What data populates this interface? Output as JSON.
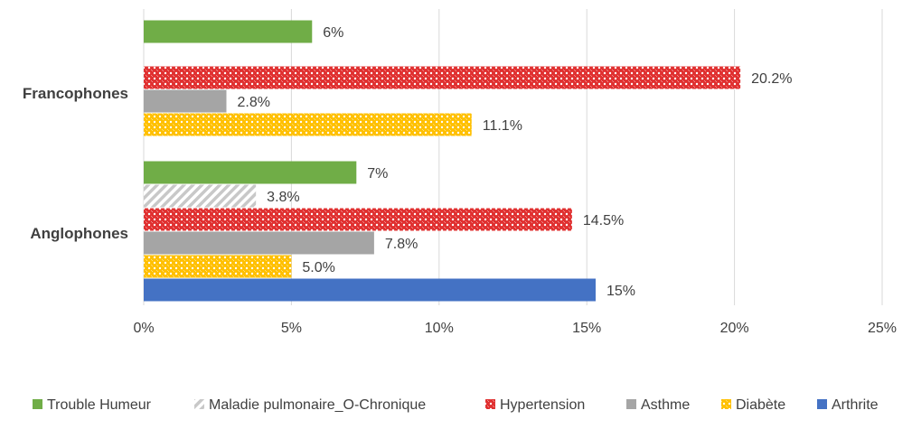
{
  "chart_data": {
    "type": "bar",
    "orientation": "horizontal",
    "x_ticks": [
      "0%",
      "5%",
      "10%",
      "15%",
      "20%",
      "25%"
    ],
    "xlim": [
      0,
      25
    ],
    "grid": true,
    "legend_position": "bottom",
    "categories": [
      "Francophones",
      "Anglophones"
    ],
    "series": [
      {
        "name": "Trouble Humeur",
        "color": "#70ad47",
        "pattern": "solid",
        "values": [
          5.7,
          7.2
        ],
        "labels": [
          "6%",
          "7%"
        ]
      },
      {
        "name": "Maladie pulmonaire_O-Chronique",
        "color": "#bfbfbf",
        "pattern": "diagonal-stripes",
        "values": [
          null,
          3.8
        ],
        "labels": [
          "",
          "3.8%"
        ]
      },
      {
        "name": "Hypertension",
        "color": "#e03030",
        "pattern": "red-dots",
        "values": [
          20.2,
          14.5
        ],
        "labels": [
          "20.2%",
          "14.5%"
        ]
      },
      {
        "name": "Asthme",
        "color": "#a5a5a5",
        "pattern": "solid",
        "values": [
          2.8,
          7.8
        ],
        "labels": [
          "2.8%",
          "7.8%"
        ]
      },
      {
        "name": "Diabète",
        "color": "#ffc000",
        "pattern": "yellow-dots",
        "values": [
          11.1,
          5.0
        ],
        "labels": [
          "11.1%",
          "5.0%"
        ]
      },
      {
        "name": "Arthrite",
        "color": "#4472c4",
        "pattern": "solid",
        "values": [
          null,
          15.3
        ],
        "labels": [
          "",
          "15%"
        ]
      }
    ]
  }
}
